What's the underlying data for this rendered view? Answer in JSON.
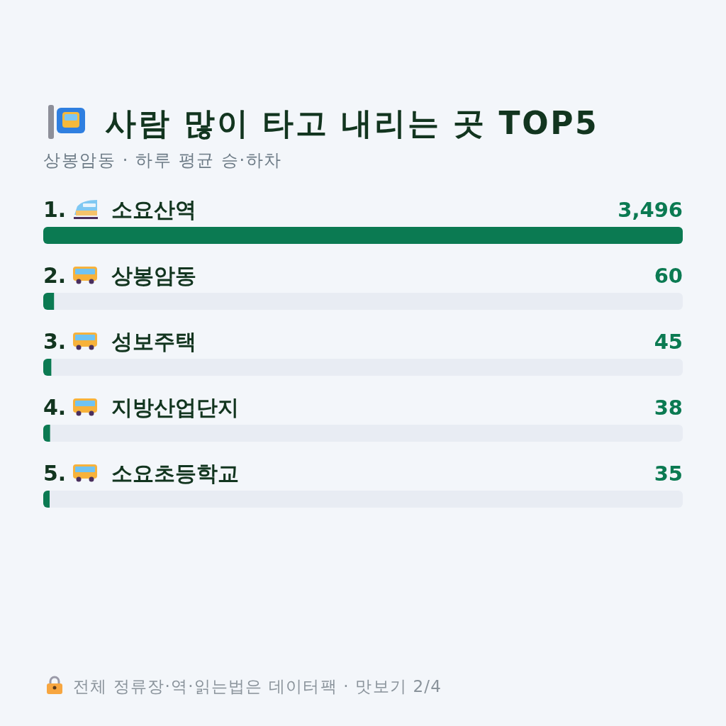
{
  "chart_data": {
    "type": "bar",
    "orientation": "horizontal",
    "title": "사람 많이 타고 내리는 곳 TOP5",
    "subtitle": "상봉암동 · 하루 평균 승·하차",
    "categories": [
      "1. 소요산역",
      "2. 상봉암동",
      "3. 성보주택",
      "4. 지방산업단지",
      "5. 소요초등학교"
    ],
    "values": [
      3496,
      60,
      45,
      38,
      35
    ],
    "value_labels": [
      "3,496",
      "60",
      "45",
      "38",
      "35"
    ],
    "color": "#0b7a52",
    "annotations": [
      "전체 정류장·역·읽는법은 데이터팩 · 맛보기 2/4"
    ]
  }
}
